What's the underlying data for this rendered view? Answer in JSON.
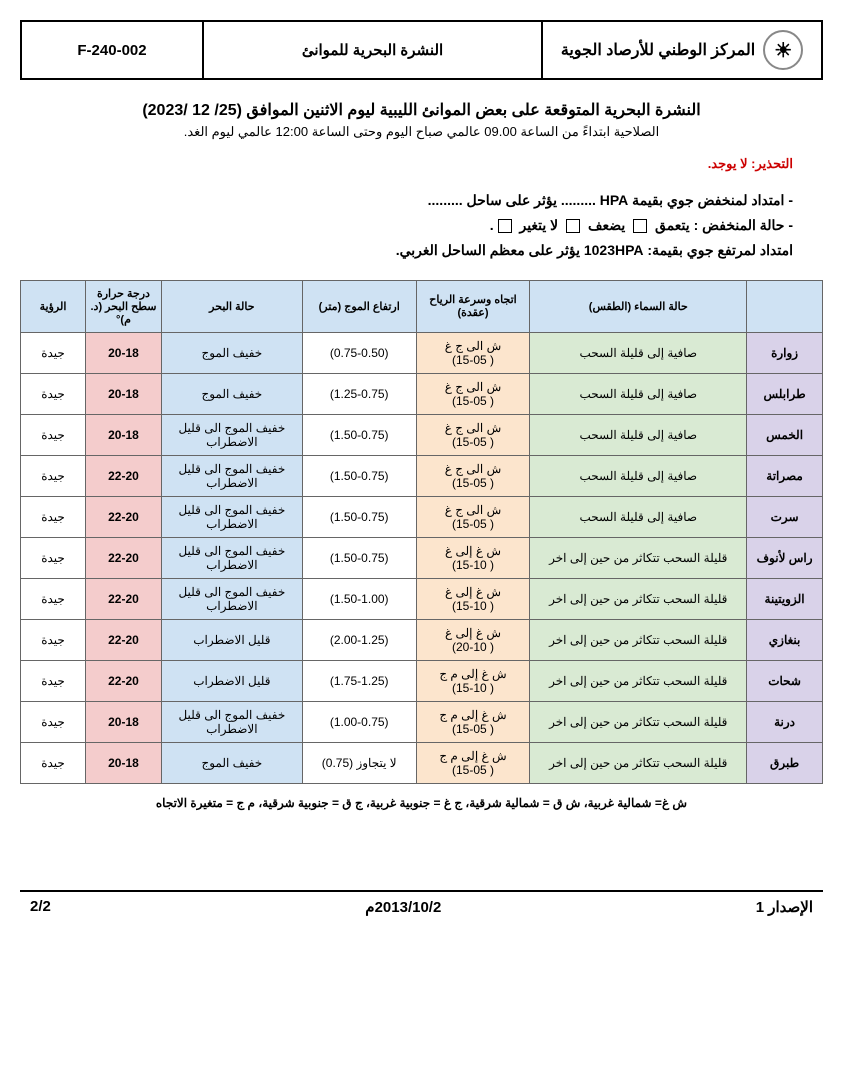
{
  "header": {
    "org": "المركز الوطني للأرصاد الجوية",
    "doc_title": "النشرة البحرية للموانئ",
    "code": "F-240-002"
  },
  "title": "النشرة البحرية المتوقعة على بعض الموانئ الليبية ليوم الاثنين الموافق (25/ 12 /2023)",
  "subtitle": "الصلاحية ابتداءً من الساعة 09.00 عالمي صباح اليوم وحتى الساعة 12:00 عالمي ليوم الغد.",
  "warning_label": "التحذير:",
  "warning_text": "لا يوجد.",
  "synopsis": {
    "line1_a": "- امتداد لمنخفض جوي بقيمة HPA",
    "line1_b": ".........  يؤثر على ساحل .........",
    "line2_a": "- حالة المنخفض  :   يتعمق",
    "line2_b": "يضعف",
    "line2_c": "لا يتغير",
    "line3": "امتداد لمرتفع جوي بقيمة: 1023HPA يؤثر على معظم الساحل الغربي."
  },
  "columns": {
    "city": "",
    "sky": "حالة السماء\n(الطقس)",
    "wind": "اتجاه وسرعة الرياح\n(عقدة)",
    "wave": "ارتفاع الموج (متر)",
    "sea": "حالة البحر",
    "temp": "درجة حرارة سطح البحر (د. م)°",
    "vis": "الرؤية"
  },
  "rows": [
    {
      "city": "زوارة",
      "sky": "صافية إلى قليلة السحب",
      "wind": "ش الى ج غ\n( 15-05)",
      "wave": "(0.75-0.50)",
      "sea": "خفيف الموج",
      "temp": "20-18",
      "vis": "جيدة"
    },
    {
      "city": "طرابلس",
      "sky": "صافية إلى قليلة السحب",
      "wind": "ش الى ج غ\n( 15-05)",
      "wave": "(1.25-0.75)",
      "sea": "خفيف الموج",
      "temp": "20-18",
      "vis": "جيدة"
    },
    {
      "city": "الخمس",
      "sky": "صافية إلى قليلة السحب",
      "wind": "ش الى ج غ\n( 15-05)",
      "wave": "(1.50-0.75)",
      "sea": "خفيف الموج الى قليل الاضطراب",
      "temp": "20-18",
      "vis": "جيدة"
    },
    {
      "city": "مصراتة",
      "sky": "صافية إلى قليلة السحب",
      "wind": "ش الى ج غ\n( 15-05)",
      "wave": "(1.50-0.75)",
      "sea": "خفيف الموج الى قليل الاضطراب",
      "temp": "22-20",
      "vis": "جيدة"
    },
    {
      "city": "سرت",
      "sky": "صافية إلى قليلة السحب",
      "wind": "ش الى ج غ\n( 15-05)",
      "wave": "(1.50-0.75)",
      "sea": "خفيف الموج الى قليل الاضطراب",
      "temp": "22-20",
      "vis": "جيدة"
    },
    {
      "city": "راس لأنوف",
      "sky": "قليلة السحب تتكاثر من حين إلى اخر",
      "wind": "ش غ إلى غ\n( 15-10)",
      "wave": "(1.50-0.75)",
      "sea": "خفيف الموج الى قليل الاضطراب",
      "temp": "22-20",
      "vis": "جيدة"
    },
    {
      "city": "الزويتينة",
      "sky": "قليلة السحب تتكاثر من حين إلى اخر",
      "wind": "ش غ إلى غ\n( 15-10)",
      "wave": "(1.50-1.00)",
      "sea": "خفيف الموج الى قليل الاضطراب",
      "temp": "22-20",
      "vis": "جيدة"
    },
    {
      "city": "بنغازي",
      "sky": "قليلة السحب تتكاثر من حين إلى اخر",
      "wind": "ش غ إلى غ\n( 20-10)",
      "wave": "(2.00-1.25)",
      "sea": "قليل الاضطراب",
      "temp": "22-20",
      "vis": "جيدة"
    },
    {
      "city": "شحات",
      "sky": "قليلة السحب تتكاثر من حين إلى اخر",
      "wind": "ش غ إلى م ج\n( 15-10)",
      "wave": "(1.75-1.25)",
      "sea": "قليل الاضطراب",
      "temp": "22-20",
      "vis": "جيدة"
    },
    {
      "city": "درنة",
      "sky": "قليلة السحب تتكاثر من حين إلى اخر",
      "wind": "ش غ إلى م ج\n( 15-05)",
      "wave": "(1.00-0.75)",
      "sea": "خفيف الموج الى قليل الاضطراب",
      "temp": "20-18",
      "vis": "جيدة"
    },
    {
      "city": "طبرق",
      "sky": "قليلة السحب تتكاثر من حين إلى اخر",
      "wind": "ش غ إلى م ج\n( 15-05)",
      "wave": "لا يتجاوز (0.75)",
      "sea": "خفيف الموج",
      "temp": "20-18",
      "vis": "جيدة"
    }
  ],
  "legend": "ش غ= شمالية غربية، ش ق = شمالية شرقية، ج غ = جنوبية غربية، ج ق = جنوبية شرقية، م ج = متغيرة الاتجاه",
  "footer": {
    "issue": "الإصدار 1",
    "date": "2013/10/2م",
    "page": "2/2"
  }
}
